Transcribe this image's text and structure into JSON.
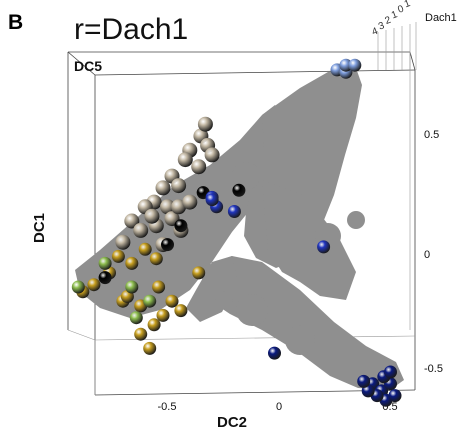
{
  "panel": {
    "letter": "B",
    "title": "r=Dach1"
  },
  "colors": {
    "background_cells": "#8f8f8f",
    "level0": "#000000",
    "level1": "#c3b8a4",
    "level2": "#c8a020",
    "level3": "#8fbf50",
    "level4": "#2035c0",
    "level5": "#0a1a80",
    "apex": "#7f9fdf"
  },
  "chart_data": {
    "type": "scatter",
    "title": "r=Dach1",
    "xlabel": "DC2",
    "ylabel": "DC1",
    "zlabel": "DC5",
    "x_ticks": [
      "-0.5",
      "0",
      "0.5"
    ],
    "y_ticks": [
      "0.5",
      "0",
      "-0.5"
    ],
    "xlim": [
      -0.95,
      0.6
    ],
    "ylim": [
      -0.65,
      0.75
    ],
    "legend": {
      "title": "Dach1",
      "ticks": [
        "4",
        "3",
        "2",
        "1",
        "0",
        "1"
      ]
    },
    "series": [
      {
        "color": "level1",
        "points": [
          [
            -0.35,
            0.5
          ],
          [
            -0.32,
            0.46
          ],
          [
            -0.4,
            0.44
          ],
          [
            -0.42,
            0.4
          ],
          [
            -0.36,
            0.37
          ],
          [
            -0.48,
            0.33
          ],
          [
            -0.52,
            0.28
          ],
          [
            -0.45,
            0.29
          ],
          [
            -0.56,
            0.22
          ],
          [
            -0.6,
            0.2
          ],
          [
            -0.5,
            0.2
          ],
          [
            -0.66,
            0.14
          ],
          [
            -0.62,
            0.1
          ],
          [
            -0.55,
            0.12
          ],
          [
            -0.44,
            0.1
          ],
          [
            -0.48,
            0.15
          ],
          [
            -0.7,
            0.05
          ],
          [
            -0.52,
            0.04
          ],
          [
            -0.45,
            0.2
          ],
          [
            -0.4,
            0.22
          ],
          [
            -0.33,
            0.55
          ],
          [
            -0.3,
            0.42
          ],
          [
            -0.57,
            0.16
          ]
        ]
      },
      {
        "color": "level2",
        "points": [
          [
            -0.88,
            -0.16
          ],
          [
            -0.83,
            -0.13
          ],
          [
            -0.76,
            -0.08
          ],
          [
            -0.66,
            -0.04
          ],
          [
            -0.72,
            -0.01
          ],
          [
            -0.6,
            0.02
          ],
          [
            -0.55,
            -0.02
          ],
          [
            -0.7,
            -0.2
          ],
          [
            -0.62,
            -0.22
          ],
          [
            -0.68,
            -0.18
          ],
          [
            -0.56,
            -0.3
          ],
          [
            -0.62,
            -0.34
          ],
          [
            -0.52,
            -0.26
          ],
          [
            -0.48,
            -0.2
          ],
          [
            -0.44,
            -0.24
          ],
          [
            -0.54,
            -0.14
          ],
          [
            -0.36,
            -0.08
          ],
          [
            -0.58,
            -0.4
          ]
        ]
      },
      {
        "color": "level3",
        "points": [
          [
            -0.9,
            -0.14
          ],
          [
            -0.78,
            -0.04
          ],
          [
            -0.66,
            -0.14
          ],
          [
            -0.58,
            -0.2
          ],
          [
            -0.64,
            -0.27
          ]
        ]
      },
      {
        "color": "level0",
        "points": [
          [
            -0.78,
            -0.1
          ],
          [
            -0.44,
            0.12
          ],
          [
            -0.34,
            0.26
          ],
          [
            -0.18,
            0.27
          ],
          [
            -0.5,
            0.04
          ]
        ]
      },
      {
        "color": "level4",
        "points": [
          [
            -0.28,
            0.2
          ],
          [
            -0.2,
            0.18
          ],
          [
            -0.3,
            0.24
          ],
          [
            0.2,
            0.03
          ],
          [
            -0.3,
            0.23
          ]
        ]
      },
      {
        "color": "level5",
        "points": [
          [
            -0.02,
            -0.42
          ],
          [
            0.42,
            -0.55
          ],
          [
            0.46,
            -0.58
          ],
          [
            0.5,
            -0.55
          ],
          [
            0.48,
            -0.62
          ],
          [
            0.44,
            -0.6
          ],
          [
            0.52,
            -0.6
          ],
          [
            0.4,
            -0.58
          ],
          [
            0.47,
            -0.52
          ],
          [
            0.38,
            -0.54
          ],
          [
            0.5,
            -0.5
          ]
        ]
      },
      {
        "color": "apex",
        "points": [
          [
            0.26,
            0.78
          ],
          [
            0.3,
            0.77
          ],
          [
            0.3,
            0.8
          ],
          [
            0.34,
            0.8
          ]
        ]
      }
    ]
  }
}
